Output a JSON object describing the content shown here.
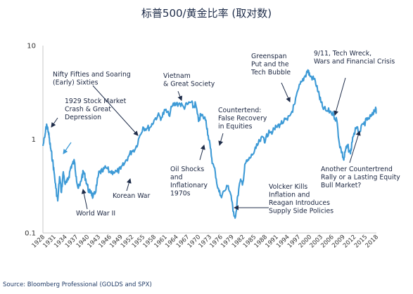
{
  "title": "标普500/黄金比率 (取对数)",
  "source": "Source: Bloomberg Professional (GOLDS and SPX)",
  "colors": {
    "line": "#3d9ad6",
    "arrow": "#1f2d4a",
    "text": "#1a2540"
  },
  "chart_data": {
    "type": "line",
    "title": "标普500/黄金比率 (取对数)",
    "yscale": "log",
    "ylim": [
      0.1,
      10
    ],
    "yticks": [
      0.1,
      1,
      10
    ],
    "ytick_labels": [
      "0.1",
      "1",
      "10"
    ],
    "xlim": [
      1928,
      2018
    ],
    "xticks": [
      1928,
      1931,
      1934,
      1937,
      1940,
      1943,
      1946,
      1949,
      1952,
      1955,
      1958,
      1961,
      1964,
      1967,
      1970,
      1973,
      1976,
      1979,
      1982,
      1985,
      1988,
      1991,
      1994,
      1997,
      2000,
      2003,
      2006,
      2009,
      2012,
      2015,
      2018
    ],
    "xtick_labels": [
      "1928",
      "1931",
      "1934",
      "1937",
      "1940",
      "1943",
      "1946",
      "1949",
      "1952",
      "1955",
      "1958",
      "1961",
      "1964",
      "1967",
      "1970",
      "1973",
      "1976",
      "1979",
      "1982",
      "1985",
      "1988",
      "1991",
      "1994",
      "1997",
      "2000",
      "2003",
      "2006",
      "2009",
      "2012",
      "2015",
      "2018"
    ],
    "grid": false,
    "series": [
      {
        "x": [
          1928.0,
          1928.5,
          1929.0,
          1929.5,
          1929.8,
          1930.2,
          1930.6,
          1931.0,
          1931.5,
          1932.0,
          1932.5,
          1933.0,
          1933.5,
          1934.0,
          1934.5,
          1935.0,
          1935.5,
          1936.0,
          1936.5,
          1937.0,
          1937.5,
          1938.0,
          1938.5,
          1939.0,
          1939.5,
          1940.0,
          1940.5,
          1941.0,
          1941.5,
          1942.0,
          1942.5,
          1943.0,
          1943.5,
          1944.0,
          1945.0,
          1946.0,
          1947.0,
          1948.0,
          1949.0,
          1950.0,
          1951.0,
          1952.0,
          1953.0,
          1954.0,
          1955.0,
          1956.0,
          1957.0,
          1958.0,
          1959.0,
          1960.0,
          1961.0,
          1962.0,
          1963.0,
          1964.0,
          1965.0,
          1966.0,
          1967.0,
          1968.0,
          1968.6,
          1969.2,
          1970.0,
          1970.6,
          1971.2,
          1972.0,
          1972.6,
          1973.2,
          1973.8,
          1974.5,
          1975.2,
          1976.0,
          1977.0,
          1978.0,
          1978.8,
          1979.3,
          1980.0,
          1980.6,
          1981.2,
          1982.0,
          1982.6,
          1983.5,
          1984.5,
          1985.5,
          1986.5,
          1987.5,
          1988.0,
          1989.0,
          1990.0,
          1991.0,
          1992.0,
          1993.0,
          1994.0,
          1995.0,
          1996.0,
          1997.0,
          1998.0,
          1998.8,
          1999.5,
          2000.0,
          2000.8,
          2001.5,
          2002.3,
          2003.0,
          2003.5,
          2004.5,
          2005.5,
          2006.5,
          2007.3,
          2008.0,
          2008.7,
          2009.2,
          2009.6,
          2010.2,
          2011.0,
          2011.6,
          2012.5,
          2013.5,
          2014.5,
          2015.5,
          2016.5,
          2017.2,
          2017.8,
          2018.0
        ],
        "y": [
          0.85,
          1.05,
          1.45,
          1.2,
          0.95,
          0.75,
          0.6,
          0.45,
          0.3,
          0.22,
          0.4,
          0.27,
          0.45,
          0.33,
          0.35,
          0.4,
          0.5,
          0.55,
          0.58,
          0.4,
          0.3,
          0.32,
          0.4,
          0.45,
          0.38,
          0.32,
          0.27,
          0.28,
          0.24,
          0.26,
          0.32,
          0.42,
          0.45,
          0.45,
          0.5,
          0.45,
          0.45,
          0.45,
          0.48,
          0.55,
          0.65,
          0.75,
          0.8,
          1.05,
          1.35,
          1.3,
          1.35,
          1.6,
          1.8,
          1.7,
          2.05,
          1.8,
          2.3,
          2.4,
          2.4,
          2.2,
          2.35,
          2.5,
          2.2,
          2.4,
          1.55,
          1.8,
          1.75,
          1.6,
          1.1,
          0.8,
          0.55,
          0.45,
          0.3,
          0.25,
          0.28,
          0.32,
          0.25,
          0.17,
          0.15,
          0.25,
          0.35,
          0.35,
          0.55,
          0.6,
          0.68,
          0.8,
          0.95,
          1.05,
          0.95,
          1.25,
          1.2,
          1.35,
          1.45,
          1.55,
          1.6,
          1.9,
          2.4,
          3.5,
          4.2,
          4.8,
          5.5,
          4.8,
          4.5,
          4.2,
          3.2,
          2.5,
          2.2,
          2.0,
          2.0,
          1.8,
          1.6,
          0.9,
          0.72,
          0.6,
          0.75,
          0.85,
          0.7,
          1.05,
          1.3,
          1.2,
          1.45,
          1.6,
          1.75,
          1.85,
          2.2,
          1.9
        ]
      }
    ],
    "annotations": [
      {
        "label": [
          "1929 Stock Market",
          "Crash & Great",
          "Depression"
        ],
        "x": 1929.5,
        "y": 1.4
      },
      {
        "label": [
          "Nifty Fifties and Soaring",
          "(Early) Sixties"
        ],
        "x": 1953,
        "y": 1.25
      },
      {
        "label": [
          "Vietnam",
          "& Great Society"
        ],
        "x": 1966,
        "y": 2.5
      },
      {
        "label": [
          "World War II"
        ],
        "x": 1941.5,
        "y": 0.28
      },
      {
        "label": [
          "Korean War"
        ],
        "x": 1950,
        "y": 0.5
      },
      {
        "label": [
          "Oil Shocks",
          "and",
          "Inflationary",
          "1970s"
        ],
        "x": 1973.2,
        "y": 0.9
      },
      {
        "label": [
          "Countertend:",
          "False Recovery",
          "in Equities"
        ],
        "x": 1975.8,
        "y": 0.8
      },
      {
        "label": [
          "Greenspan",
          "Put and the",
          "Tech Bubble"
        ],
        "x": 1996,
        "y": 2.9
      },
      {
        "label": [
          "Volcker Kills",
          "Inflation and",
          "Reagan Introduces",
          "Supply Side Policies"
        ],
        "x": 1980,
        "y": 0.15
      },
      {
        "label": [
          "9/11, Tech Wreck,",
          "Wars and Financial Crisis"
        ],
        "x": 2008.5,
        "y": 1.7
      },
      {
        "label": [
          "Another Countertrend",
          "Rally or a Lasting Equity",
          "Bull Market?"
        ],
        "x": 2014.5,
        "y": 1.3
      }
    ]
  }
}
